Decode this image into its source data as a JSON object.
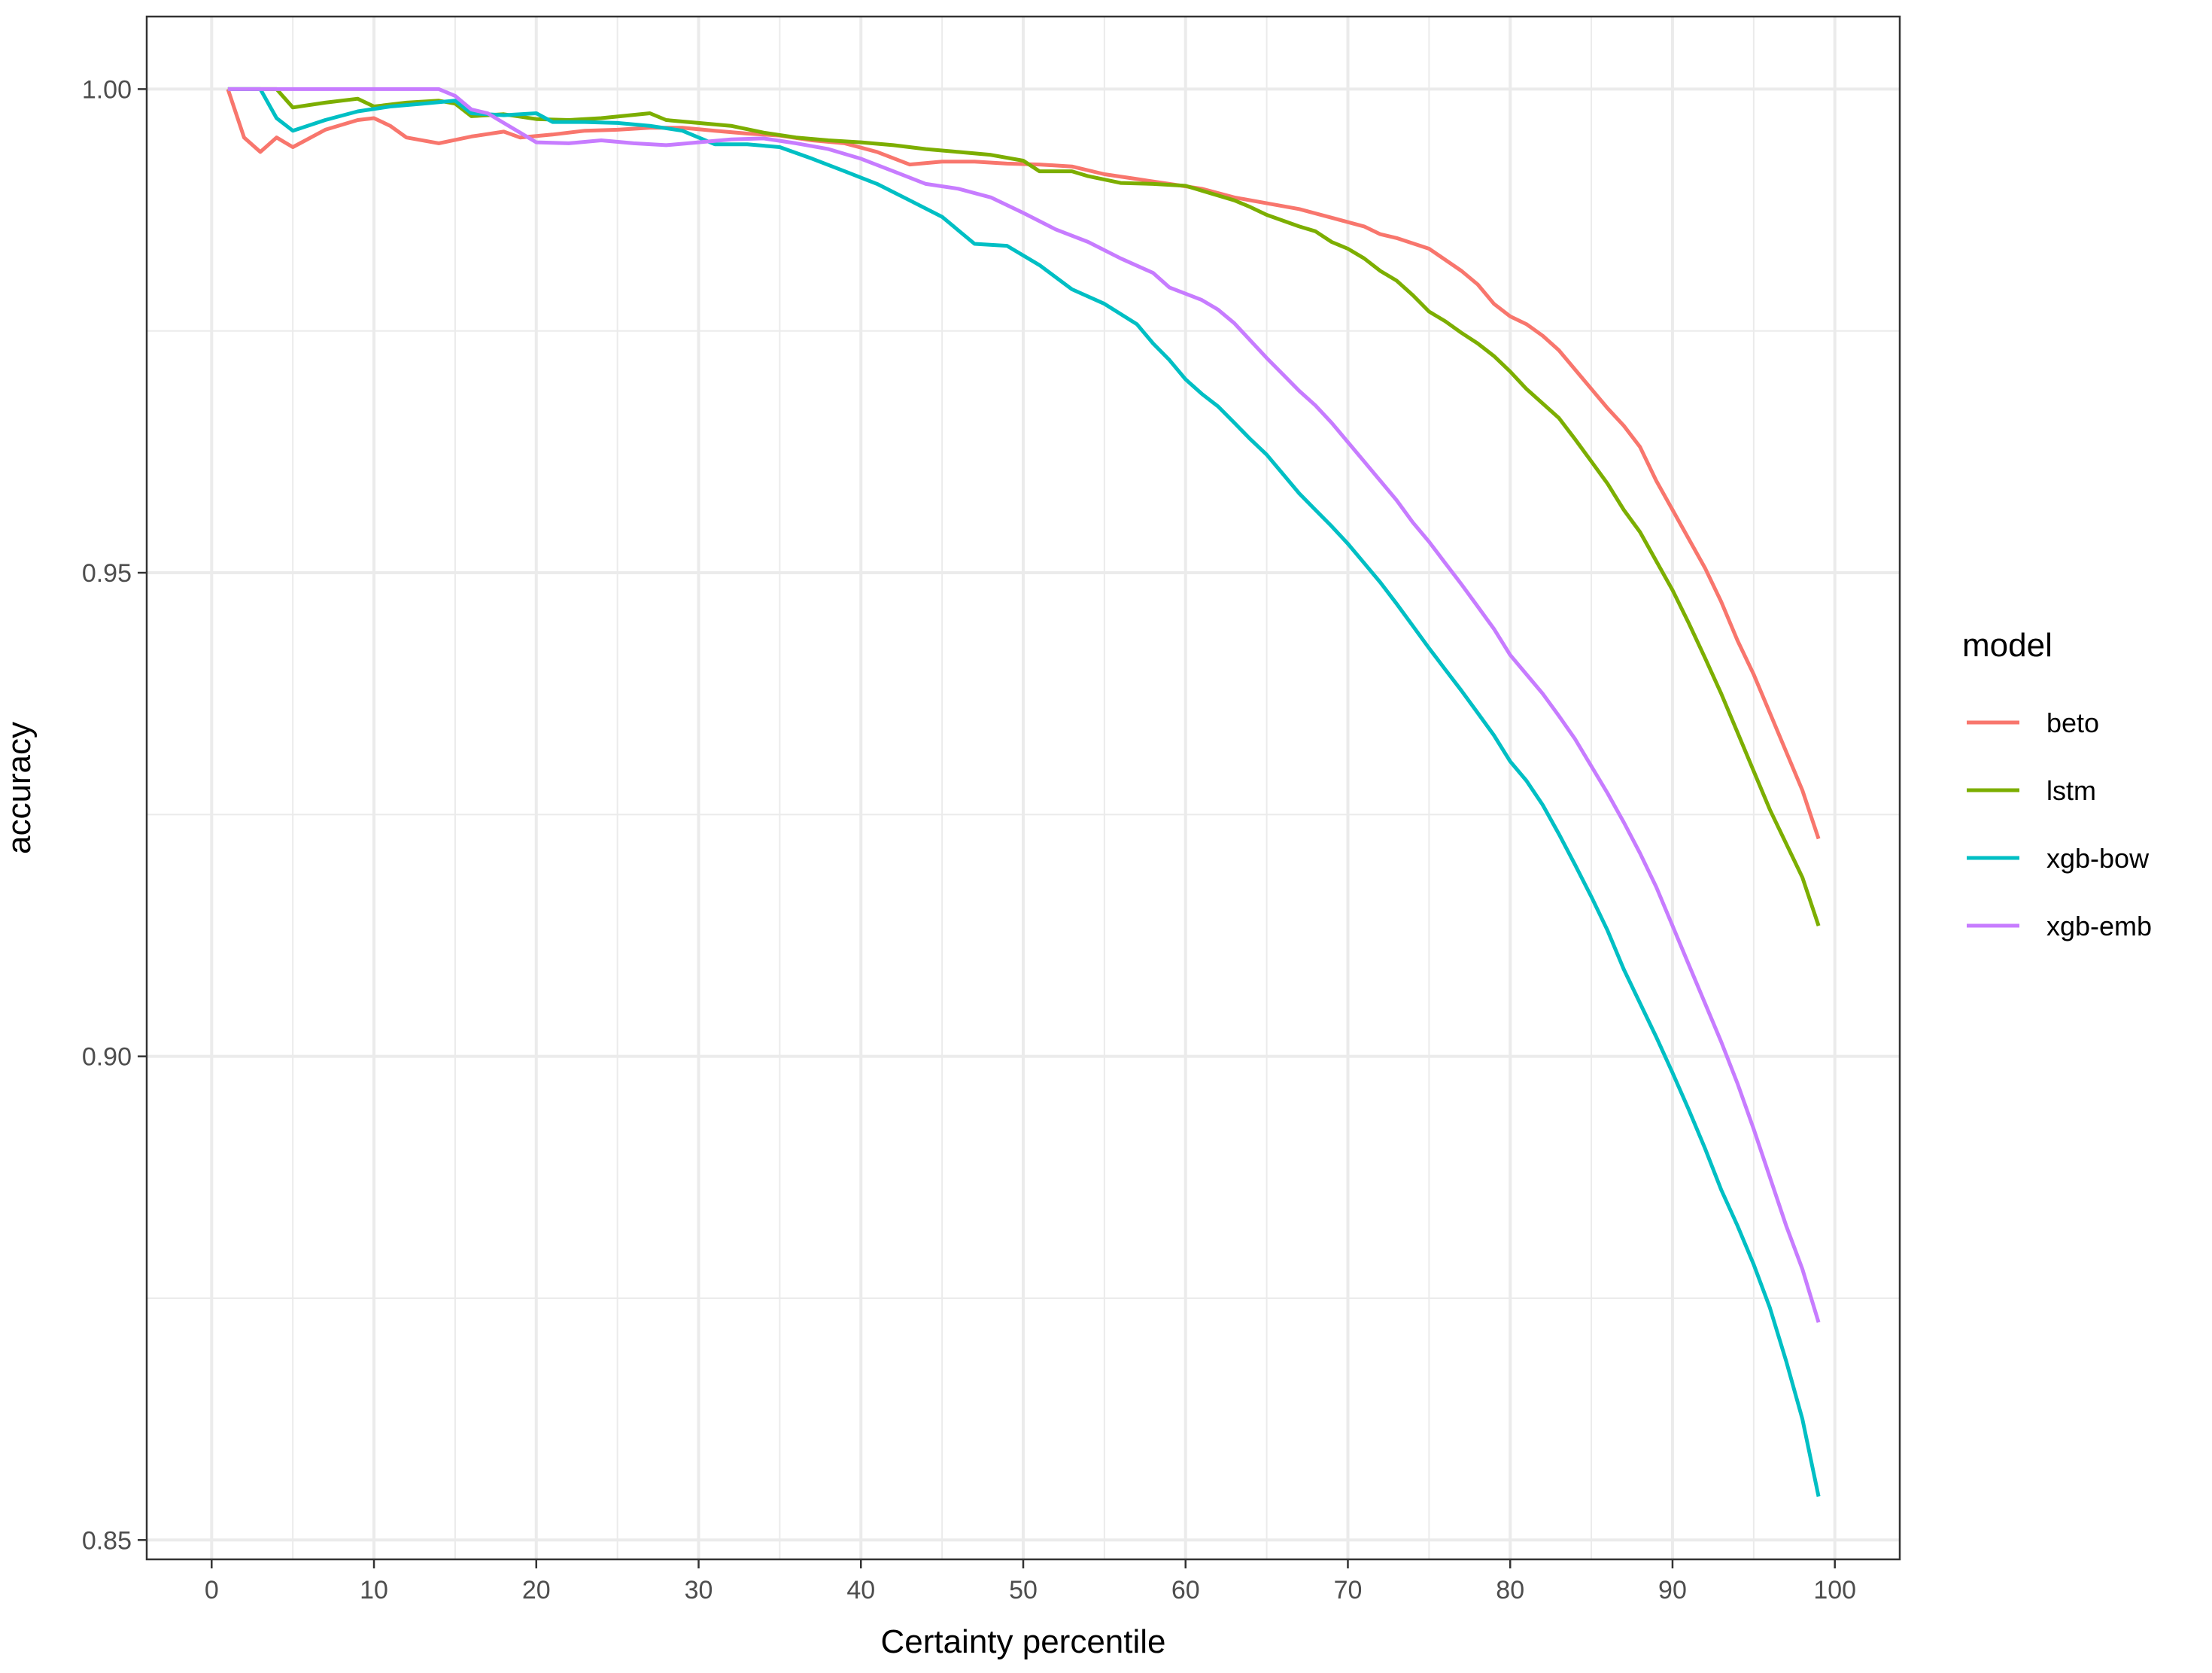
{
  "chart_data": {
    "type": "line",
    "xlabel": "Certainty percentile",
    "ylabel": "accuracy",
    "xlim": [
      -4,
      104
    ],
    "ylim": [
      0.848,
      1.0075
    ],
    "x_ticks": [
      0,
      10,
      20,
      30,
      40,
      50,
      60,
      70,
      80,
      90,
      100
    ],
    "x_tick_labels": [
      "0",
      "10",
      "20",
      "30",
      "40",
      "50",
      "60",
      "70",
      "80",
      "90",
      "100"
    ],
    "y_ticks": [
      0.85,
      0.9,
      0.95,
      1.0
    ],
    "y_tick_labels": [
      "0.85",
      "0.90",
      "0.95",
      "1.00"
    ],
    "y_minor_ticks": [
      0.875,
      0.925,
      0.975
    ],
    "grid": true,
    "legend": {
      "title": "model",
      "position": "right"
    },
    "series": [
      {
        "name": "beto",
        "color": "#F8766D",
        "points": [
          [
            1,
            1.0
          ],
          [
            2,
            0.995
          ],
          [
            3,
            0.9935
          ],
          [
            4,
            0.995
          ],
          [
            5,
            0.994
          ],
          [
            7,
            0.9958
          ],
          [
            9,
            0.9968
          ],
          [
            10,
            0.997
          ],
          [
            11,
            0.9962
          ],
          [
            12,
            0.995
          ],
          [
            14,
            0.9944
          ],
          [
            16,
            0.9951
          ],
          [
            18,
            0.9956
          ],
          [
            19,
            0.995
          ],
          [
            21,
            0.9953
          ],
          [
            23,
            0.9957
          ],
          [
            25,
            0.9958
          ],
          [
            27,
            0.996
          ],
          [
            29,
            0.996
          ],
          [
            31,
            0.9957
          ],
          [
            33,
            0.9954
          ],
          [
            35,
            0.9952
          ],
          [
            37,
            0.9947
          ],
          [
            39,
            0.9944
          ],
          [
            41,
            0.9935
          ],
          [
            43,
            0.9922
          ],
          [
            45,
            0.9925
          ],
          [
            47,
            0.9925
          ],
          [
            49,
            0.9923
          ],
          [
            51,
            0.9922
          ],
          [
            53,
            0.992
          ],
          [
            55,
            0.9912
          ],
          [
            57,
            0.9907
          ],
          [
            59,
            0.9902
          ],
          [
            61,
            0.9897
          ],
          [
            63,
            0.9888
          ],
          [
            65,
            0.9882
          ],
          [
            67,
            0.9876
          ],
          [
            69,
            0.9867
          ],
          [
            71,
            0.9858
          ],
          [
            72,
            0.985
          ],
          [
            73,
            0.9846
          ],
          [
            75,
            0.9835
          ],
          [
            77,
            0.9812
          ],
          [
            78,
            0.9798
          ],
          [
            79,
            0.9778
          ],
          [
            80,
            0.9765
          ],
          [
            81,
            0.9757
          ],
          [
            82,
            0.9745
          ],
          [
            83,
            0.973
          ],
          [
            84,
            0.971
          ],
          [
            85,
            0.969
          ],
          [
            86,
            0.967
          ],
          [
            87,
            0.9652
          ],
          [
            88,
            0.963
          ],
          [
            89,
            0.9595
          ],
          [
            90,
            0.9565
          ],
          [
            91,
            0.9535
          ],
          [
            92,
            0.9505
          ],
          [
            93,
            0.947
          ],
          [
            94,
            0.943
          ],
          [
            95,
            0.9395
          ],
          [
            96,
            0.9355
          ],
          [
            97,
            0.9315
          ],
          [
            98,
            0.9275
          ],
          [
            99,
            0.9225
          ]
        ]
      },
      {
        "name": "lstm",
        "color": "#7CAE00",
        "points": [
          [
            1,
            1.0
          ],
          [
            4,
            1.0
          ],
          [
            5,
            0.9981
          ],
          [
            7,
            0.9986
          ],
          [
            9,
            0.999
          ],
          [
            10,
            0.9982
          ],
          [
            12,
            0.9986
          ],
          [
            14,
            0.9988
          ],
          [
            15,
            0.9985
          ],
          [
            16,
            0.9972
          ],
          [
            18,
            0.9974
          ],
          [
            20,
            0.9969
          ],
          [
            22,
            0.9968
          ],
          [
            24,
            0.997
          ],
          [
            27,
            0.9975
          ],
          [
            28,
            0.9968
          ],
          [
            30,
            0.9965
          ],
          [
            32,
            0.9962
          ],
          [
            34,
            0.9955
          ],
          [
            36,
            0.995
          ],
          [
            38,
            0.9947
          ],
          [
            40,
            0.9945
          ],
          [
            42,
            0.9942
          ],
          [
            44,
            0.9938
          ],
          [
            46,
            0.9935
          ],
          [
            48,
            0.9932
          ],
          [
            50,
            0.9926
          ],
          [
            51,
            0.9915
          ],
          [
            53,
            0.9915
          ],
          [
            54,
            0.991
          ],
          [
            56,
            0.9903
          ],
          [
            58,
            0.9902
          ],
          [
            60,
            0.99
          ],
          [
            61,
            0.9895
          ],
          [
            63,
            0.9885
          ],
          [
            64,
            0.9878
          ],
          [
            65,
            0.987
          ],
          [
            67,
            0.9858
          ],
          [
            68,
            0.9853
          ],
          [
            69,
            0.9842
          ],
          [
            70,
            0.9835
          ],
          [
            71,
            0.9825
          ],
          [
            72,
            0.9812
          ],
          [
            73,
            0.9802
          ],
          [
            74,
            0.9787
          ],
          [
            75,
            0.977
          ],
          [
            76,
            0.976
          ],
          [
            77,
            0.9748
          ],
          [
            78,
            0.9737
          ],
          [
            79,
            0.9724
          ],
          [
            80,
            0.9708
          ],
          [
            81,
            0.969
          ],
          [
            82,
            0.9675
          ],
          [
            83,
            0.966
          ],
          [
            84,
            0.9638
          ],
          [
            85,
            0.9615
          ],
          [
            86,
            0.9592
          ],
          [
            87,
            0.9565
          ],
          [
            88,
            0.9542
          ],
          [
            89,
            0.9512
          ],
          [
            90,
            0.9482
          ],
          [
            91,
            0.9448
          ],
          [
            92,
            0.9412
          ],
          [
            93,
            0.9375
          ],
          [
            94,
            0.9335
          ],
          [
            95,
            0.9295
          ],
          [
            96,
            0.9255
          ],
          [
            97,
            0.922
          ],
          [
            98,
            0.9185
          ],
          [
            99,
            0.9135
          ]
        ]
      },
      {
        "name": "xgb-bow",
        "color": "#00BFC4",
        "points": [
          [
            1,
            1.0
          ],
          [
            3,
            1.0
          ],
          [
            4,
            0.997
          ],
          [
            5,
            0.9957
          ],
          [
            7,
            0.9968
          ],
          [
            9,
            0.9977
          ],
          [
            11,
            0.9982
          ],
          [
            13,
            0.9985
          ],
          [
            15,
            0.9988
          ],
          [
            16,
            0.9975
          ],
          [
            18,
            0.9973
          ],
          [
            20,
            0.9975
          ],
          [
            21,
            0.9966
          ],
          [
            23,
            0.9966
          ],
          [
            25,
            0.9965
          ],
          [
            27,
            0.9962
          ],
          [
            29,
            0.9957
          ],
          [
            30,
            0.995
          ],
          [
            31,
            0.9943
          ],
          [
            33,
            0.9943
          ],
          [
            35,
            0.994
          ],
          [
            37,
            0.9928
          ],
          [
            39,
            0.9915
          ],
          [
            41,
            0.9902
          ],
          [
            43,
            0.9885
          ],
          [
            45,
            0.9868
          ],
          [
            47,
            0.984
          ],
          [
            49,
            0.9838
          ],
          [
            51,
            0.9818
          ],
          [
            53,
            0.9793
          ],
          [
            55,
            0.9778
          ],
          [
            57,
            0.9757
          ],
          [
            58,
            0.9737
          ],
          [
            59,
            0.972
          ],
          [
            60,
            0.97
          ],
          [
            61,
            0.9685
          ],
          [
            62,
            0.9672
          ],
          [
            63,
            0.9655
          ],
          [
            64,
            0.9638
          ],
          [
            65,
            0.9622
          ],
          [
            66,
            0.9602
          ],
          [
            67,
            0.9582
          ],
          [
            68,
            0.9565
          ],
          [
            69,
            0.9548
          ],
          [
            70,
            0.953
          ],
          [
            71,
            0.951
          ],
          [
            72,
            0.949
          ],
          [
            73,
            0.9468
          ],
          [
            74,
            0.9445
          ],
          [
            75,
            0.9422
          ],
          [
            76,
            0.94
          ],
          [
            77,
            0.9378
          ],
          [
            78,
            0.9355
          ],
          [
            79,
            0.9332
          ],
          [
            80,
            0.9305
          ],
          [
            81,
            0.9285
          ],
          [
            82,
            0.926
          ],
          [
            83,
            0.923
          ],
          [
            84,
            0.9198
          ],
          [
            85,
            0.9165
          ],
          [
            86,
            0.913
          ],
          [
            87,
            0.909
          ],
          [
            88,
            0.9055
          ],
          [
            89,
            0.902
          ],
          [
            90,
            0.8983
          ],
          [
            91,
            0.8945
          ],
          [
            92,
            0.8905
          ],
          [
            93,
            0.8862
          ],
          [
            94,
            0.8825
          ],
          [
            95,
            0.8785
          ],
          [
            96,
            0.874
          ],
          [
            97,
            0.8685
          ],
          [
            98,
            0.8625
          ],
          [
            99,
            0.8545
          ]
        ]
      },
      {
        "name": "xgb-emb",
        "color": "#C77CFF",
        "points": [
          [
            1,
            1.0
          ],
          [
            14,
            1.0
          ],
          [
            15,
            0.9993
          ],
          [
            16,
            0.9979
          ],
          [
            17,
            0.9975
          ],
          [
            18,
            0.9965
          ],
          [
            19,
            0.9955
          ],
          [
            20,
            0.9945
          ],
          [
            22,
            0.9944
          ],
          [
            24,
            0.9947
          ],
          [
            26,
            0.9944
          ],
          [
            28,
            0.9942
          ],
          [
            30,
            0.9945
          ],
          [
            32,
            0.9948
          ],
          [
            34,
            0.9949
          ],
          [
            36,
            0.9944
          ],
          [
            38,
            0.9938
          ],
          [
            40,
            0.9928
          ],
          [
            42,
            0.9915
          ],
          [
            44,
            0.9902
          ],
          [
            46,
            0.9897
          ],
          [
            48,
            0.9888
          ],
          [
            50,
            0.9872
          ],
          [
            52,
            0.9855
          ],
          [
            54,
            0.9842
          ],
          [
            56,
            0.9825
          ],
          [
            58,
            0.981
          ],
          [
            59,
            0.9795
          ],
          [
            61,
            0.9782
          ],
          [
            62,
            0.9772
          ],
          [
            63,
            0.9758
          ],
          [
            64,
            0.974
          ],
          [
            65,
            0.9722
          ],
          [
            66,
            0.9705
          ],
          [
            67,
            0.9688
          ],
          [
            68,
            0.9673
          ],
          [
            69,
            0.9655
          ],
          [
            70,
            0.9635
          ],
          [
            71,
            0.9615
          ],
          [
            72,
            0.9595
          ],
          [
            73,
            0.9575
          ],
          [
            74,
            0.9552
          ],
          [
            75,
            0.9532
          ],
          [
            76,
            0.951
          ],
          [
            77,
            0.9488
          ],
          [
            78,
            0.9465
          ],
          [
            79,
            0.9442
          ],
          [
            80,
            0.9415
          ],
          [
            81,
            0.9395
          ],
          [
            82,
            0.9375
          ],
          [
            83,
            0.9352
          ],
          [
            84,
            0.9328
          ],
          [
            85,
            0.93
          ],
          [
            86,
            0.9272
          ],
          [
            87,
            0.9242
          ],
          [
            88,
            0.921
          ],
          [
            89,
            0.9175
          ],
          [
            90,
            0.9135
          ],
          [
            91,
            0.9095
          ],
          [
            92,
            0.9055
          ],
          [
            93,
            0.9015
          ],
          [
            94,
            0.8972
          ],
          [
            95,
            0.8925
          ],
          [
            96,
            0.8875
          ],
          [
            97,
            0.8825
          ],
          [
            98,
            0.878
          ],
          [
            99,
            0.8725
          ]
        ]
      }
    ]
  }
}
